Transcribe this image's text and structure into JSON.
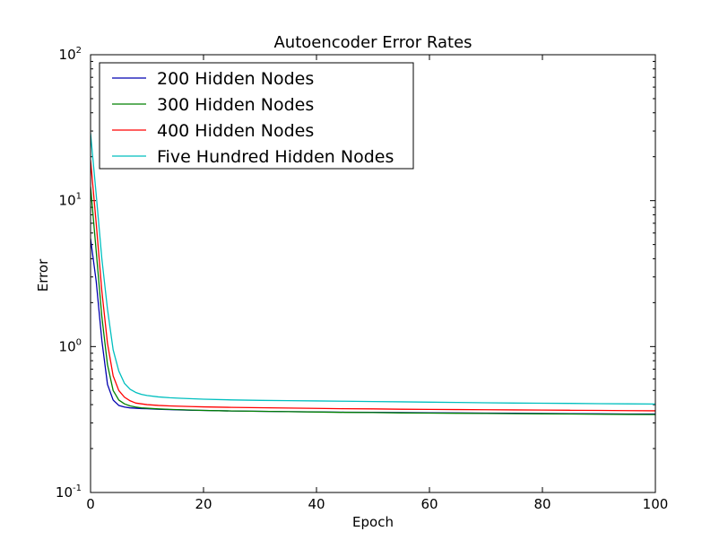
{
  "chart_data": {
    "type": "line",
    "title": "Autoencoder Error Rates",
    "xlabel": "Epoch",
    "ylabel": "Error",
    "xlim": [
      0,
      100
    ],
    "ylim": [
      0.1,
      100
    ],
    "yscale": "log",
    "grid": false,
    "legend_position": "top-left",
    "x_ticks": [
      {
        "value": 0,
        "label": "0"
      },
      {
        "value": 20,
        "label": "20"
      },
      {
        "value": 40,
        "label": "40"
      },
      {
        "value": 60,
        "label": "60"
      },
      {
        "value": 80,
        "label": "80"
      },
      {
        "value": 100,
        "label": "100"
      }
    ],
    "y_ticks": [
      {
        "value": 0.1,
        "base": "10",
        "exp": "-1"
      },
      {
        "value": 1,
        "base": "10",
        "exp": "0"
      },
      {
        "value": 10,
        "base": "10",
        "exp": "1"
      },
      {
        "value": 100,
        "base": "10",
        "exp": "2"
      }
    ],
    "x": [
      0,
      1,
      2,
      3,
      4,
      5,
      6,
      7,
      8,
      9,
      10,
      12,
      14,
      16,
      18,
      20,
      25,
      30,
      35,
      40,
      45,
      50,
      55,
      60,
      65,
      70,
      75,
      80,
      85,
      90,
      95,
      100
    ],
    "series": [
      {
        "name": "200 Hidden Nodes",
        "color": "#0000b0",
        "values": [
          5.5,
          2.8,
          1.1,
          0.55,
          0.43,
          0.395,
          0.385,
          0.38,
          0.378,
          0.376,
          0.375,
          0.372,
          0.37,
          0.368,
          0.366,
          0.365,
          0.362,
          0.36,
          0.358,
          0.357,
          0.355,
          0.354,
          0.353,
          0.352,
          0.351,
          0.35,
          0.349,
          0.348,
          0.347,
          0.346,
          0.345,
          0.345
        ]
      },
      {
        "name": "300 Hidden Nodes",
        "color": "#008000",
        "values": [
          12.5,
          4.5,
          1.6,
          0.75,
          0.5,
          0.43,
          0.405,
          0.392,
          0.385,
          0.38,
          0.378,
          0.374,
          0.371,
          0.369,
          0.367,
          0.365,
          0.362,
          0.36,
          0.358,
          0.356,
          0.354,
          0.353,
          0.351,
          0.35,
          0.349,
          0.348,
          0.347,
          0.346,
          0.345,
          0.344,
          0.343,
          0.342
        ]
      },
      {
        "name": "400 Hidden Nodes",
        "color": "#ff0000",
        "values": [
          19,
          7,
          2.4,
          1.05,
          0.63,
          0.5,
          0.45,
          0.425,
          0.41,
          0.405,
          0.4,
          0.395,
          0.392,
          0.39,
          0.388,
          0.386,
          0.383,
          0.381,
          0.379,
          0.377,
          0.375,
          0.374,
          0.372,
          0.371,
          0.37,
          0.369,
          0.368,
          0.367,
          0.366,
          0.365,
          0.364,
          0.363
        ]
      },
      {
        "name": "Five Hundred Hidden Nodes",
        "color": "#00bfbf",
        "values": [
          29,
          11,
          4,
          1.8,
          0.95,
          0.68,
          0.56,
          0.51,
          0.485,
          0.47,
          0.462,
          0.452,
          0.446,
          0.442,
          0.439,
          0.436,
          0.431,
          0.428,
          0.426,
          0.424,
          0.422,
          0.42,
          0.418,
          0.416,
          0.414,
          0.412,
          0.41,
          0.409,
          0.408,
          0.406,
          0.405,
          0.404
        ]
      }
    ]
  }
}
